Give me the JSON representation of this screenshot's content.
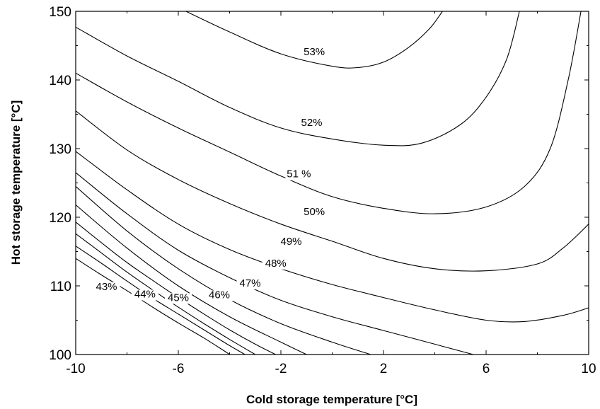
{
  "chart_data": {
    "type": "contour",
    "title": "",
    "xlabel": "Cold storage temperature [°C]",
    "ylabel": "Hot storage temperature [°C]",
    "xlim": [
      -10,
      10
    ],
    "ylim": [
      100,
      150
    ],
    "x_ticks": [
      "-10",
      "-6",
      "-2",
      "2",
      "6",
      "10"
    ],
    "x_tick_values": [
      -10,
      -6,
      -2,
      2,
      6,
      10
    ],
    "y_ticks": [
      "100",
      "110",
      "120",
      "130",
      "140",
      "150"
    ],
    "y_tick_values": [
      100,
      110,
      120,
      130,
      140,
      150
    ],
    "grid": false,
    "series": [
      {
        "label": "43%",
        "label_at": [
          -8.8,
          109.4
        ],
        "points": [
          [
            -10,
            114
          ],
          [
            -9,
            111.6
          ],
          [
            -8,
            109.3
          ],
          [
            -7,
            106.9
          ],
          [
            -6,
            104.6
          ],
          [
            -5,
            102.4
          ],
          [
            -4.2,
            100.5
          ],
          [
            -4,
            100
          ]
        ]
      },
      {
        "label": "44%",
        "label_at": [
          -7.3,
          108.3
        ],
        "points": [
          [
            -10,
            115.8
          ],
          [
            -9,
            113.3
          ],
          [
            -8,
            110.7
          ],
          [
            -7,
            108.2
          ],
          [
            -6,
            105.9
          ],
          [
            -5,
            103.6
          ],
          [
            -4,
            101.3
          ],
          [
            -3.4,
            100
          ]
        ]
      },
      {
        "label": "45%",
        "label_at": [
          -6.0,
          107.8
        ],
        "points": [
          [
            -10,
            117.6
          ],
          [
            -9,
            114.8
          ],
          [
            -8,
            112
          ],
          [
            -7,
            109.4
          ],
          [
            -6,
            106.9
          ],
          [
            -5,
            104.5
          ],
          [
            -4,
            102.2
          ],
          [
            -3,
            100
          ]
        ]
      },
      {
        "label": "46%",
        "label_at": [
          -4.4,
          108.2
        ],
        "points": [
          [
            -10,
            119.3
          ],
          [
            -9,
            116.3
          ],
          [
            -8,
            113.4
          ],
          [
            -7,
            110.8
          ],
          [
            -6,
            108.3
          ],
          [
            -5,
            105.9
          ],
          [
            -4,
            103.6
          ],
          [
            -3,
            101.5
          ],
          [
            -2.2,
            100
          ]
        ]
      },
      {
        "label": "47%",
        "label_at": [
          -3.2,
          109.9
        ],
        "points": [
          [
            -10,
            121.8
          ],
          [
            -8,
            115.5
          ],
          [
            -6,
            110
          ],
          [
            -4,
            105.5
          ],
          [
            -2,
            101.8
          ],
          [
            -1,
            100
          ]
        ]
      },
      {
        "label": "48%",
        "label_at": [
          -2.2,
          112.8
        ],
        "points": [
          [
            -10,
            124.5
          ],
          [
            -8,
            118
          ],
          [
            -6,
            112.5
          ],
          [
            -4,
            108
          ],
          [
            -2,
            104.5
          ],
          [
            0,
            101.8
          ],
          [
            1.5,
            100
          ]
        ]
      },
      {
        "label": "49%",
        "label_at": [
          -1.6,
          116.0
        ],
        "points": [
          [
            -10,
            126.5
          ],
          [
            -8,
            120.5
          ],
          [
            -6,
            115.2
          ],
          [
            -4,
            111.2
          ],
          [
            -2,
            107.9
          ],
          [
            0,
            105.5
          ],
          [
            2,
            103.5
          ],
          [
            4,
            101.5
          ],
          [
            5.5,
            100
          ]
        ]
      },
      {
        "label": "50%",
        "label_at": [
          -0.7,
          120.3
        ],
        "points": [
          [
            -10,
            129.6
          ],
          [
            -8,
            124
          ],
          [
            -6,
            119
          ],
          [
            -4,
            115.3
          ],
          [
            -2,
            112.5
          ],
          [
            0,
            110.2
          ],
          [
            2,
            108.3
          ],
          [
            4,
            106.5
          ],
          [
            6,
            105
          ],
          [
            7.5,
            104.8
          ],
          [
            9,
            105.7
          ],
          [
            10,
            106.8
          ]
        ]
      },
      {
        "label": "51 %",
        "label_at": [
          -1.3,
          125.8
        ],
        "points": [
          [
            -10,
            135.5
          ],
          [
            -8,
            129.8
          ],
          [
            -6,
            125.5
          ],
          [
            -4,
            122
          ],
          [
            -2,
            119
          ],
          [
            0,
            116.5
          ],
          [
            2,
            114
          ],
          [
            4,
            112.5
          ],
          [
            6,
            112.2
          ],
          [
            8,
            113.2
          ],
          [
            9,
            115.5
          ],
          [
            10,
            119
          ]
        ]
      },
      {
        "label": "52%",
        "label_at": [
          -0.8,
          133.3
        ],
        "points": [
          [
            -10,
            141
          ],
          [
            -8,
            136.8
          ],
          [
            -6,
            133
          ],
          [
            -4,
            129.5
          ],
          [
            -2,
            126
          ],
          [
            0,
            123
          ],
          [
            2,
            121.3
          ],
          [
            4,
            120.5
          ],
          [
            6,
            121.5
          ],
          [
            7.5,
            124.5
          ],
          [
            8.5,
            130
          ],
          [
            9.2,
            140
          ],
          [
            9.7,
            150
          ]
        ]
      },
      {
        "label": "53%",
        "label_at": [
          -0.7,
          143.6
        ],
        "points": [
          [
            -10,
            147.7
          ],
          [
            -8,
            143.5
          ],
          [
            -6,
            139.8
          ],
          [
            -4,
            136
          ],
          [
            -2,
            133
          ],
          [
            0,
            131.4
          ],
          [
            2,
            130.5
          ],
          [
            3.5,
            130.8
          ],
          [
            5,
            133.5
          ],
          [
            6,
            137.5
          ],
          [
            6.8,
            143
          ],
          [
            7.3,
            150
          ]
        ]
      },
      {
        "label": "",
        "label_at": null,
        "points": [
          [
            -5.7,
            150
          ],
          [
            -4,
            147
          ],
          [
            -2,
            143.8
          ],
          [
            0,
            142
          ],
          [
            1,
            141.8
          ],
          [
            2,
            142.6
          ],
          [
            3,
            144.8
          ],
          [
            3.8,
            147.5
          ],
          [
            4.3,
            150
          ]
        ]
      }
    ]
  }
}
